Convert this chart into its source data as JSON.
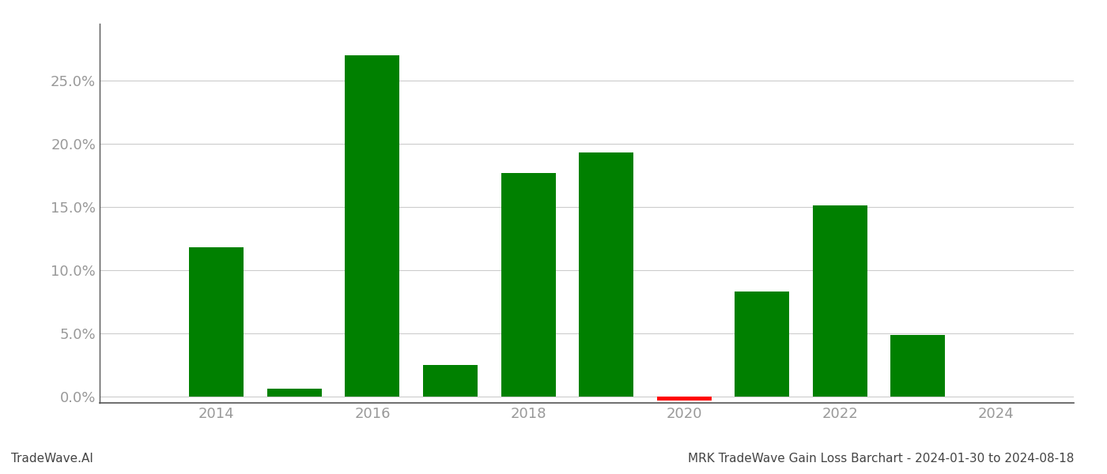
{
  "years": [
    2014,
    2015,
    2016,
    2017,
    2018,
    2019,
    2020,
    2021,
    2022,
    2023
  ],
  "values": [
    0.118,
    0.006,
    0.27,
    0.025,
    0.177,
    0.193,
    -0.003,
    0.083,
    0.151,
    0.049
  ],
  "bar_colors": [
    "#008000",
    "#008000",
    "#008000",
    "#008000",
    "#008000",
    "#008000",
    "#ff0000",
    "#008000",
    "#008000",
    "#008000"
  ],
  "title": "MRK TradeWave Gain Loss Barchart - 2024-01-30 to 2024-08-18",
  "watermark": "TradeWave.AI",
  "ylim": [
    -0.005,
    0.295
  ],
  "yticks": [
    0.0,
    0.05,
    0.1,
    0.15,
    0.2,
    0.25
  ],
  "xtick_labels": [
    "2014",
    "2016",
    "2018",
    "2020",
    "2022",
    "2024"
  ],
  "xtick_positions": [
    2014,
    2016,
    2018,
    2020,
    2022,
    2024
  ],
  "background_color": "#ffffff",
  "grid_color": "#cccccc",
  "bar_width": 0.7,
  "title_fontsize": 11,
  "watermark_fontsize": 11,
  "tick_label_color": "#999999",
  "axis_line_color": "#555555",
  "xlim": [
    2012.5,
    2025.0
  ]
}
